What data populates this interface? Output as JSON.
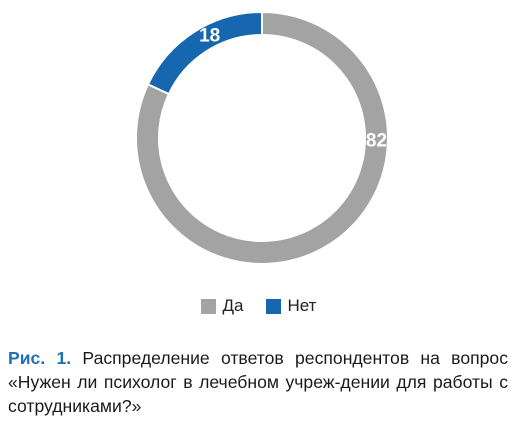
{
  "chart_data": {
    "type": "pie",
    "donut": true,
    "categories": [
      "Да",
      "Нет"
    ],
    "values": [
      82,
      18
    ],
    "colors": [
      "#a3a3a3",
      "#1766b0"
    ],
    "title": "",
    "legend_position": "bottom"
  },
  "legend": {
    "items": [
      {
        "label": "Да",
        "color": "#a3a3a3"
      },
      {
        "label": "Нет",
        "color": "#1766b0"
      }
    ]
  },
  "caption": {
    "fig_label": "Рис. 1.",
    "text": "Распределение ответов респондентов на вопрос «Нужен ли психолог в лечебном учреж-дении для работы с сотрудниками?»"
  }
}
